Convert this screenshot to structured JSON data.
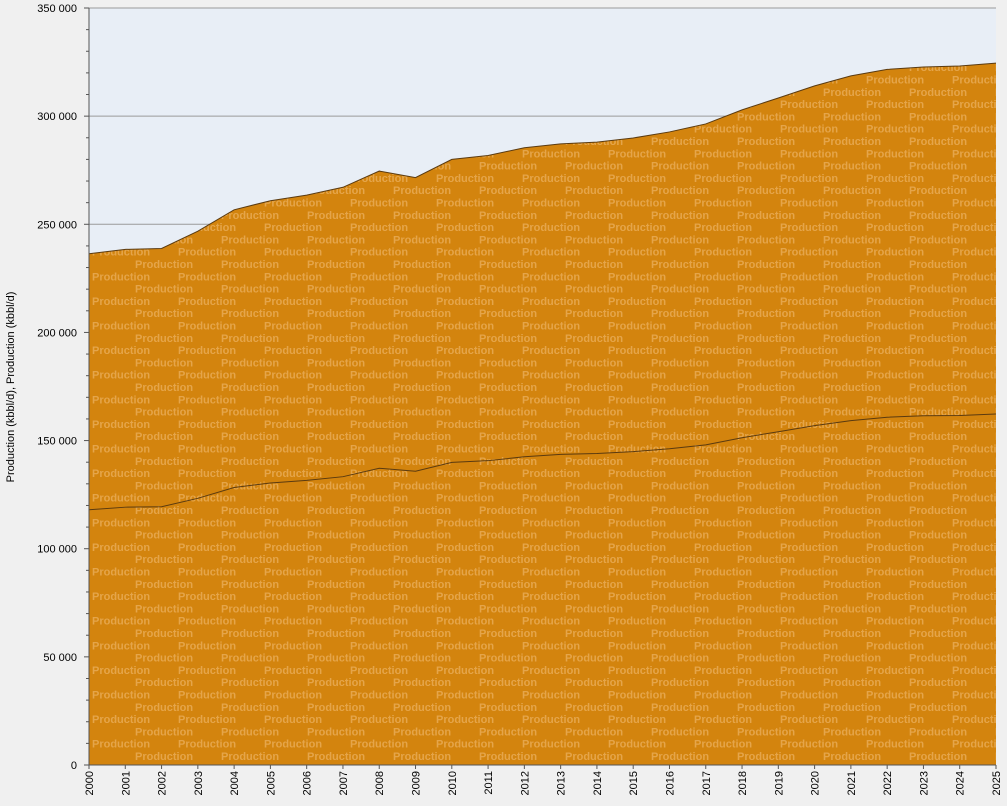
{
  "chart_data": {
    "type": "area",
    "ylabel": "Production (kbbl/d), Production (kbbl/d)",
    "ylim": [
      0,
      350000
    ],
    "yticks": [
      0,
      50000,
      100000,
      150000,
      200000,
      250000,
      300000,
      350000
    ],
    "ytick_labels": [
      "0",
      "50 000",
      "100 000",
      "150 000",
      "200 000",
      "250 000",
      "300 000",
      "350 000"
    ],
    "x": [
      "2000",
      "2001",
      "2002",
      "2003",
      "2004",
      "2005",
      "2006",
      "2007",
      "2008",
      "2009",
      "2010",
      "2011",
      "2012",
      "2013",
      "2014",
      "2015",
      "2016",
      "2017",
      "2018",
      "2019",
      "2020",
      "2021",
      "2022",
      "2023",
      "2024",
      "2025"
    ],
    "stacked": true,
    "series": [
      {
        "name": "Production",
        "values": [
          118000,
          119200,
          119400,
          123300,
          128300,
          130400,
          131600,
          133300,
          137200,
          135800,
          139900,
          140700,
          142500,
          143600,
          144000,
          144900,
          146200,
          148000,
          151300,
          154100,
          156900,
          159200,
          160800,
          161500,
          161600,
          162300
        ]
      },
      {
        "name": "Production",
        "values": [
          118400,
          119200,
          119400,
          123500,
          128400,
          130500,
          131900,
          133800,
          137400,
          135800,
          140100,
          141100,
          142900,
          143600,
          144000,
          145000,
          146500,
          148400,
          151600,
          154300,
          157100,
          159400,
          160800,
          161200,
          161600,
          162200
        ]
      }
    ],
    "watermark": "Production",
    "colors": {
      "fill": "#d3840e",
      "line": "#5a3a10",
      "plot_bg": "#e8eef6",
      "page_bg": "#f0f0f0",
      "grid": "#9a9a9a",
      "watermark": "#e5a54a"
    }
  }
}
